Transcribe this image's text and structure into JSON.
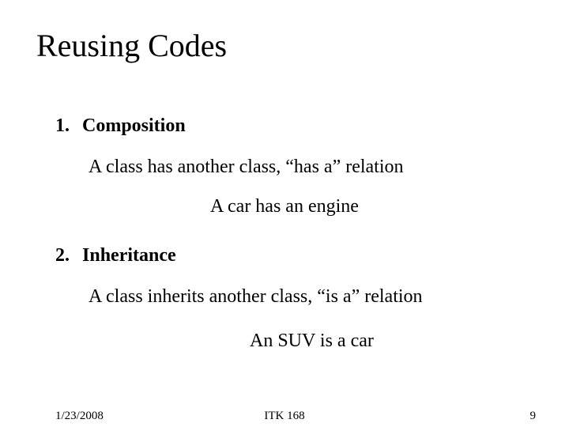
{
  "title": "Reusing Codes",
  "items": [
    {
      "number": "1.  ",
      "heading": "Composition",
      "description": "A class has another class, “has a” relation",
      "example": "A car has an engine"
    },
    {
      "number": "2.  ",
      "heading": "Inheritance",
      "description": "A class inherits another class, “is a” relation",
      "example": "An SUV is a car"
    }
  ],
  "footer": {
    "date": "1/23/2008",
    "course": "ITK 168",
    "page": "9"
  },
  "styles": {
    "background_color": "#ffffff",
    "text_color": "#000000",
    "font_family": "Times New Roman",
    "title_fontsize": 40,
    "body_fontsize": 24,
    "footer_fontsize": 15,
    "heading_weight": "bold",
    "slide_width": 720,
    "slide_height": 540
  }
}
